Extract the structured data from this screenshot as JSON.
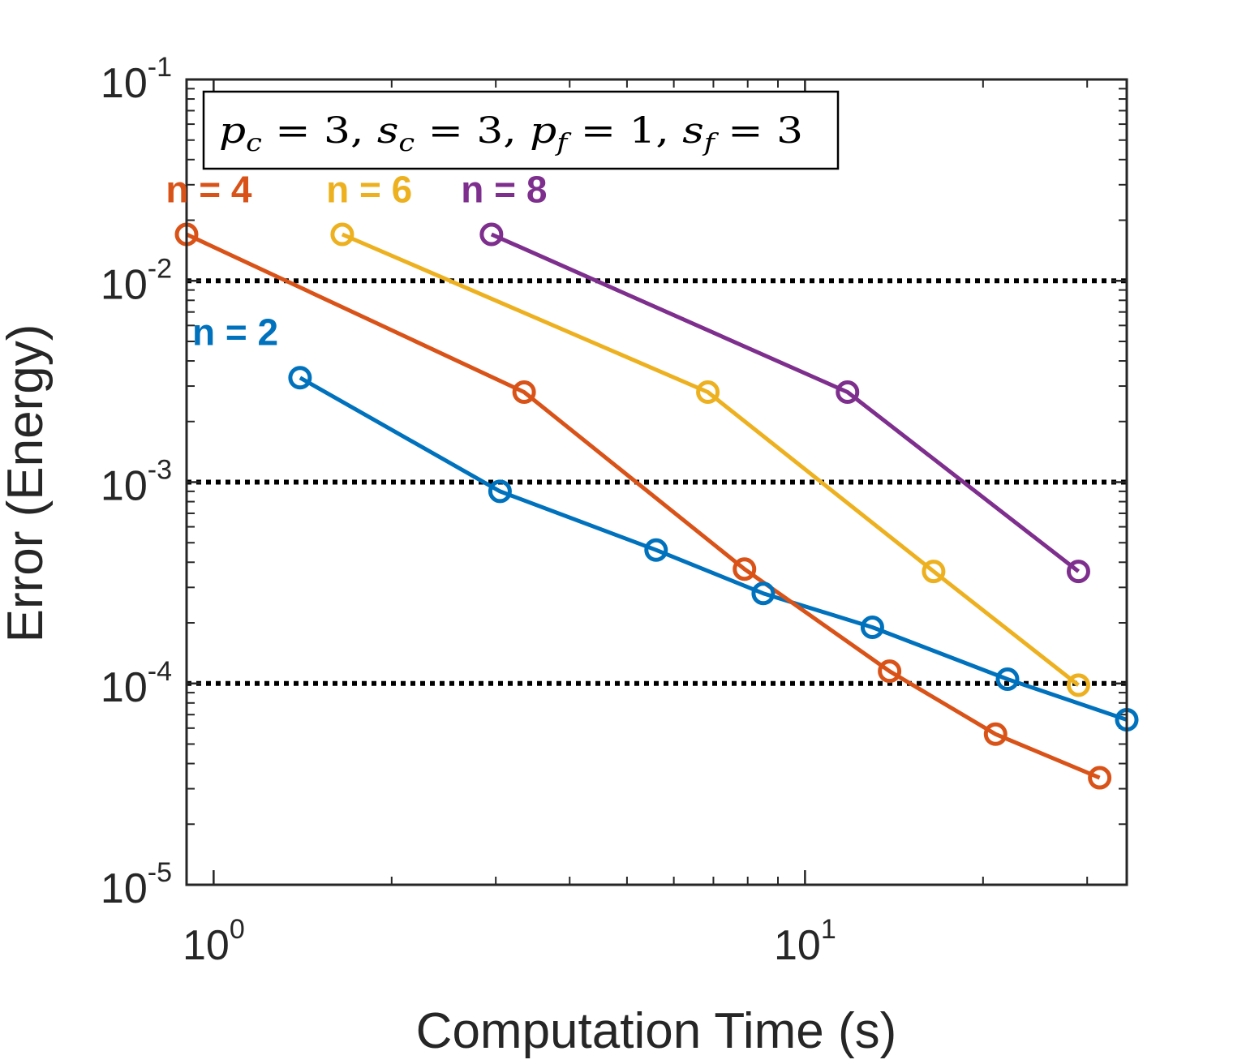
{
  "chart_data": {
    "type": "line",
    "xscale": "log",
    "yscale": "log",
    "xlim": [
      0.9,
      35
    ],
    "ylim": [
      1e-05,
      0.1
    ],
    "xlabel": "Computation Time (s)",
    "ylabel": "Error (Energy)",
    "annotation_box": "p_c = 3, s_c = 3, p_f = 1, s_f = 3",
    "x_ticks": [
      {
        "value": 1,
        "base": "10",
        "exp": "0"
      },
      {
        "value": 10,
        "base": "10",
        "exp": "1"
      }
    ],
    "y_ticks": [
      {
        "value": 0.1,
        "base": "10",
        "exp": "-1"
      },
      {
        "value": 0.01,
        "base": "10",
        "exp": "-2"
      },
      {
        "value": 0.001,
        "base": "10",
        "exp": "-3"
      },
      {
        "value": 0.0001,
        "base": "10",
        "exp": "-4"
      },
      {
        "value": 1e-05,
        "base": "10",
        "exp": "-5"
      }
    ],
    "reference_lines": [
      0.01,
      0.001,
      0.0001
    ],
    "series": [
      {
        "name": "n = 2",
        "color": "#0072BD",
        "x": [
          1.4,
          3.05,
          5.6,
          8.5,
          13.0,
          22.0,
          35.0
        ],
        "y": [
          0.0033,
          0.0009,
          0.00046,
          0.00028,
          0.00019,
          0.000105,
          6.6e-05
        ],
        "label_anchor": [
          0.92,
          0.0048
        ]
      },
      {
        "name": "n = 4",
        "color": "#D95319",
        "x": [
          0.9,
          3.35,
          7.9,
          13.9,
          21.0,
          31.5
        ],
        "y": [
          0.017,
          0.0028,
          0.00037,
          0.000115,
          5.6e-05,
          3.4e-05
        ],
        "label_anchor": [
          0.83,
          0.0245
        ]
      },
      {
        "name": "n = 6",
        "color": "#EDB120",
        "x": [
          1.65,
          6.85,
          16.5,
          29.0
        ],
        "y": [
          0.017,
          0.0028,
          0.00036,
          9.8e-05
        ],
        "label_anchor": [
          1.55,
          0.0245
        ]
      },
      {
        "name": "n = 8",
        "color": "#7E2F8E",
        "x": [
          2.95,
          11.8,
          29.0
        ],
        "y": [
          0.017,
          0.0028,
          0.00036
        ],
        "label_anchor": [
          2.62,
          0.0245
        ]
      }
    ]
  }
}
